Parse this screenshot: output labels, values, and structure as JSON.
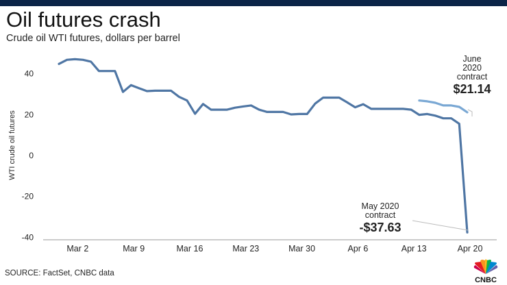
{
  "header": {
    "title": "Oil futures crash",
    "subtitle": "Crude oil WTI futures, dollars per barrel"
  },
  "footer": {
    "source": "SOURCE: FactSet, CNBC data"
  },
  "logo": {
    "text": "CNBC",
    "icon": "cnbc-peacock-icon"
  },
  "colors": {
    "may_series": "#4f76a4",
    "june_series": "#7aa8d4",
    "top_bar": "#0b2447"
  },
  "chart_data": {
    "type": "line",
    "title": "Oil futures crash",
    "subtitle": "Crude oil WTI futures, dollars per barrel",
    "ylabel": "WTI crude oil futures",
    "xlabel": "",
    "ylim": [
      -42,
      52
    ],
    "yticks": [
      40,
      20,
      0,
      -20,
      -40
    ],
    "ytick_labels": [
      "40",
      "20",
      "0",
      "-20",
      "-40"
    ],
    "xticks": [
      {
        "label": "Mar 2",
        "x": 2
      },
      {
        "label": "Mar 9",
        "x": 9
      },
      {
        "label": "Mar 16",
        "x": 16
      },
      {
        "label": "Mar 23",
        "x": 23
      },
      {
        "label": "Mar 30",
        "x": 30
      },
      {
        "label": "Apr 6",
        "x": 37
      },
      {
        "label": "Apr 13",
        "x": 44
      },
      {
        "label": "Apr 20",
        "x": 51
      }
    ],
    "x_unit_note": "",
    "grid": false,
    "series": [
      {
        "key": "may",
        "color": "#4f76a4",
        "points": [
          [
            0,
            44.8
          ],
          [
            1,
            46.8
          ],
          [
            2,
            47.1
          ],
          [
            3,
            46.8
          ],
          [
            4,
            45.9
          ],
          [
            5,
            41.3
          ],
          [
            6,
            41.3
          ],
          [
            7,
            41.3
          ],
          [
            8,
            31.1
          ],
          [
            9,
            34.4
          ],
          [
            10,
            32.9
          ],
          [
            11,
            31.5
          ],
          [
            12,
            31.7
          ],
          [
            13,
            31.7
          ],
          [
            14,
            31.7
          ],
          [
            15,
            28.7
          ],
          [
            16,
            26.9
          ],
          [
            17,
            20.4
          ],
          [
            18,
            25.2
          ],
          [
            19,
            22.4
          ],
          [
            20,
            22.4
          ],
          [
            21,
            22.4
          ],
          [
            22,
            23.4
          ],
          [
            23,
            24.0
          ],
          [
            24,
            24.5
          ],
          [
            25,
            22.4
          ],
          [
            26,
            21.3
          ],
          [
            27,
            21.3
          ],
          [
            28,
            21.3
          ],
          [
            29,
            20.1
          ],
          [
            30,
            20.3
          ],
          [
            31,
            20.3
          ],
          [
            32,
            25.4
          ],
          [
            33,
            28.3
          ],
          [
            34,
            28.3
          ],
          [
            35,
            28.3
          ],
          [
            36,
            26.0
          ],
          [
            37,
            23.6
          ],
          [
            38,
            25.1
          ],
          [
            39,
            22.8
          ],
          [
            40,
            22.8
          ],
          [
            41,
            22.8
          ],
          [
            42,
            22.8
          ],
          [
            43,
            22.8
          ],
          [
            44,
            22.4
          ],
          [
            45,
            19.9
          ],
          [
            46,
            20.3
          ],
          [
            47,
            19.5
          ],
          [
            48,
            18.2
          ],
          [
            49,
            18.2
          ],
          [
            50,
            15.5
          ],
          [
            51,
            -37.63
          ]
        ]
      },
      {
        "key": "june",
        "color": "#7aa8d4",
        "points": [
          [
            45,
            26.9
          ],
          [
            46,
            26.5
          ],
          [
            47,
            25.8
          ],
          [
            48,
            24.5
          ],
          [
            49,
            24.5
          ],
          [
            50,
            23.8
          ],
          [
            51,
            21.14
          ]
        ]
      }
    ],
    "annotations": [
      {
        "key": "june",
        "lines": [
          "June",
          "2020",
          "contract"
        ],
        "value": "$21.14"
      },
      {
        "key": "may",
        "lines": [
          "May 2020",
          "contract"
        ],
        "value": "-$37.63"
      }
    ]
  }
}
